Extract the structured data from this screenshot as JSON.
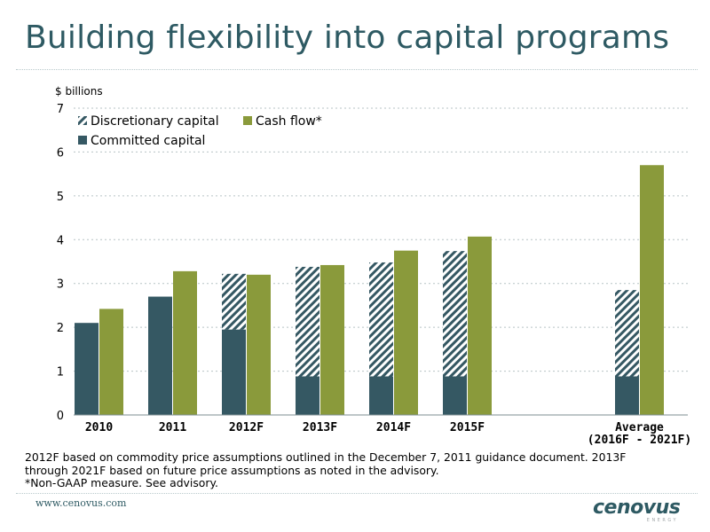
{
  "page": {
    "title": "Building flexibility into capital programs",
    "notes": [
      "2012F based on commodity price assumptions outlined in the December 7, 2011 guidance document. 2013F",
      "through 2021F based on future price assumptions as noted in the advisory.",
      "*Non-GAAP measure. See advisory."
    ],
    "footer_url": "www.cenovus.com",
    "logo_text": "cenovus",
    "logo_subtext": "ENERGY"
  },
  "colors": {
    "title": "#2e5a63",
    "committed": "#355863",
    "discretionary_stripe": "#355863",
    "cash_flow": "#8a9a3b",
    "grid": "#b7c3c5"
  },
  "chart_data": {
    "type": "bar",
    "subtype": "stacked-grouped",
    "ylabel": "$ billions",
    "ylim": [
      0,
      7
    ],
    "yticks": [
      0,
      1,
      2,
      3,
      4,
      5,
      6,
      7
    ],
    "grid": true,
    "legend_position": "top-left",
    "categories": [
      [
        "2010"
      ],
      [
        "2011"
      ],
      [
        "2012F"
      ],
      [
        "2013F"
      ],
      [
        "2014F"
      ],
      [
        "2015F"
      ],
      [
        "Average",
        "(2016F - 2021F)"
      ]
    ],
    "series": [
      {
        "name": "Committed capital",
        "stack": "capital",
        "values": [
          2.1,
          2.7,
          1.95,
          0.88,
          0.88,
          0.88,
          0.88
        ]
      },
      {
        "name": "Discretionary capital",
        "stack": "capital",
        "values": [
          0,
          0,
          1.27,
          2.5,
          2.6,
          2.86,
          1.97
        ]
      },
      {
        "name": "Cash flow*",
        "stack": "cash",
        "values": [
          2.42,
          3.28,
          3.2,
          3.42,
          3.75,
          4.07,
          5.7
        ]
      }
    ]
  }
}
